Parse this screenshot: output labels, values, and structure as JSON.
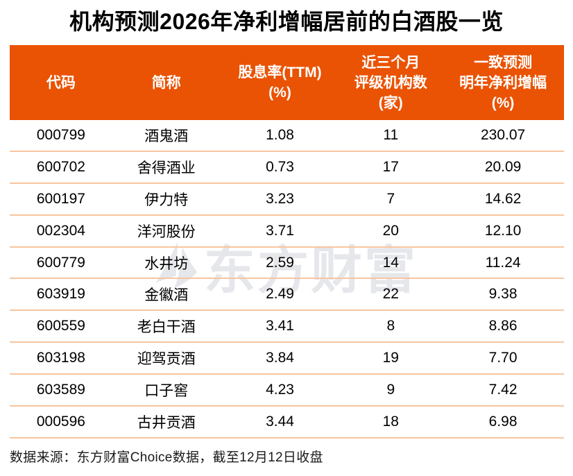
{
  "title": "机构预测2026年净利增幅居前的白酒股一览",
  "colors": {
    "header_bg": "#ea5303",
    "row_divider": "#f8c59e",
    "header_text": "#ffffff",
    "body_text": "#000000",
    "watermark": "#e5e7eb"
  },
  "table": {
    "columns": [
      {
        "id": "code",
        "lines": [
          "代码"
        ]
      },
      {
        "id": "name",
        "lines": [
          "简称"
        ]
      },
      {
        "id": "dividend-yield",
        "lines": [
          "股息率(TTM)",
          "(%)"
        ]
      },
      {
        "id": "rating-count",
        "lines": [
          "近三个月",
          "评级机构数",
          "(家)"
        ]
      },
      {
        "id": "forecast-growth",
        "lines": [
          "一致预测",
          "明年净利增幅",
          "(%)"
        ]
      }
    ],
    "rows": [
      [
        "000799",
        "酒鬼酒",
        "1.08",
        "11",
        "230.07"
      ],
      [
        "600702",
        "舍得酒业",
        "0.73",
        "17",
        "20.09"
      ],
      [
        "600197",
        "伊力特",
        "3.23",
        "7",
        "14.62"
      ],
      [
        "002304",
        "洋河股份",
        "3.71",
        "20",
        "12.10"
      ],
      [
        "600779",
        "水井坊",
        "2.59",
        "14",
        "11.24"
      ],
      [
        "603919",
        "金徽酒",
        "2.49",
        "22",
        "9.38"
      ],
      [
        "600559",
        "老白干酒",
        "3.41",
        "8",
        "8.86"
      ],
      [
        "603198",
        "迎驾贡酒",
        "3.84",
        "19",
        "7.70"
      ],
      [
        "603589",
        "口子窖",
        "4.23",
        "9",
        "7.42"
      ],
      [
        "000596",
        "古井贡酒",
        "3.44",
        "18",
        "6.98"
      ]
    ]
  },
  "watermark": {
    "logo_icon": "eastmoney-sail-logo",
    "text": "东方财富"
  },
  "footer": {
    "text": "数据来源：东方财富Choice数据，截至12月12日收盘"
  }
}
